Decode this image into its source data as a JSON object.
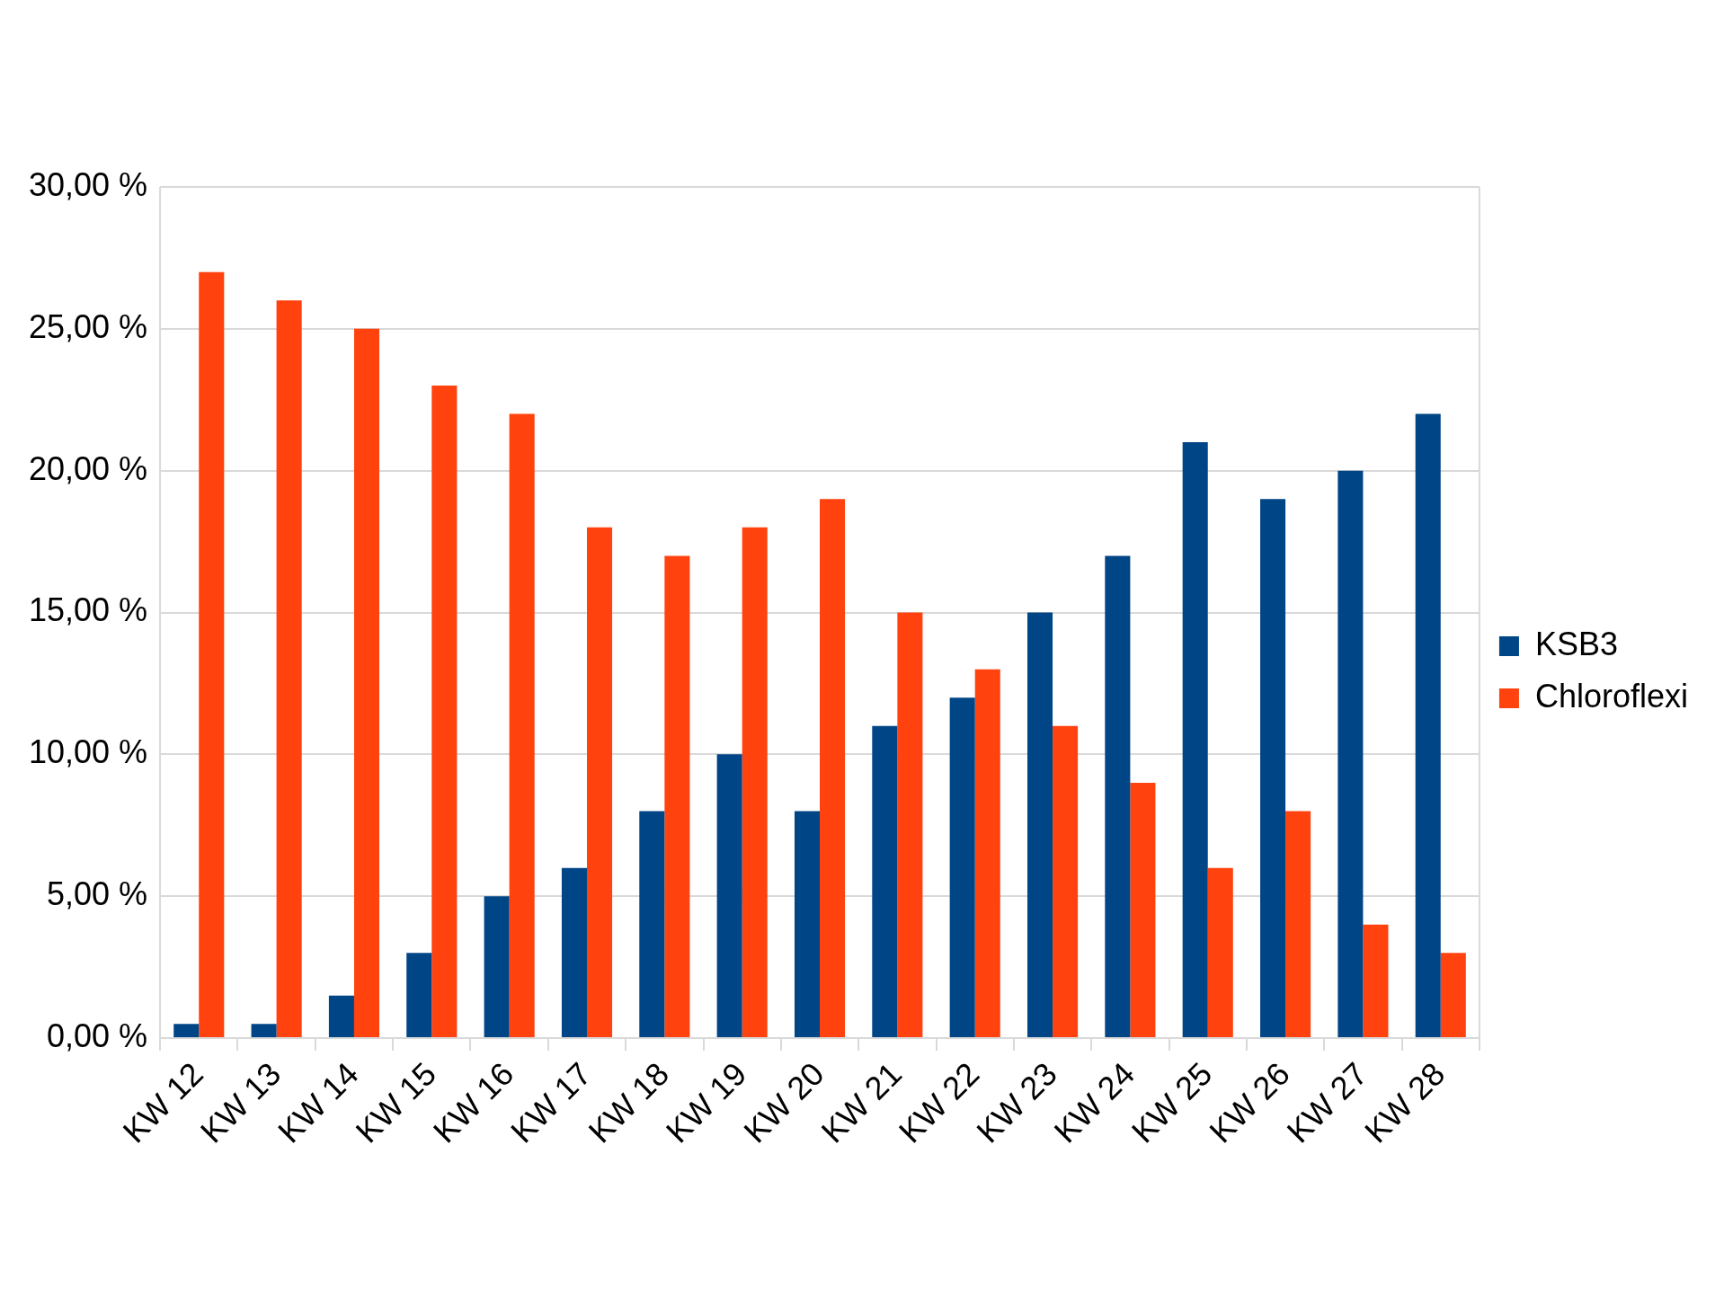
{
  "chart_data": {
    "type": "bar",
    "categories": [
      "KW 12",
      "KW 13",
      "KW 14",
      "KW 15",
      "KW 16",
      "KW 17",
      "KW 18",
      "KW 19",
      "KW 20",
      "KW 21",
      "KW 22",
      "KW 23",
      "KW 24",
      "KW 25",
      "KW 26",
      "KW 27",
      "KW 28"
    ],
    "series": [
      {
        "name": "KSB3",
        "color": "#004586",
        "values": [
          0.5,
          0.5,
          1.5,
          3,
          5,
          6,
          8,
          10,
          8,
          11,
          12,
          15,
          17,
          21,
          19,
          20,
          22
        ]
      },
      {
        "name": "Chloroflexi",
        "color": "#ff420e",
        "values": [
          27,
          26,
          25,
          23,
          22,
          18,
          17,
          18,
          19,
          15,
          13,
          11,
          9,
          6,
          8,
          4,
          3
        ]
      }
    ],
    "ylim": [
      0,
      30
    ],
    "yticks": [
      {
        "value": 0,
        "label": "0,00 %"
      },
      {
        "value": 5,
        "label": "5,00 %"
      },
      {
        "value": 10,
        "label": "10,00 %"
      },
      {
        "value": 15,
        "label": "15,00 %"
      },
      {
        "value": 20,
        "label": "20,00 %"
      },
      {
        "value": 25,
        "label": "25,00 %"
      },
      {
        "value": 30,
        "label": "30,00 %"
      }
    ],
    "grid": "y",
    "legend": "right"
  }
}
